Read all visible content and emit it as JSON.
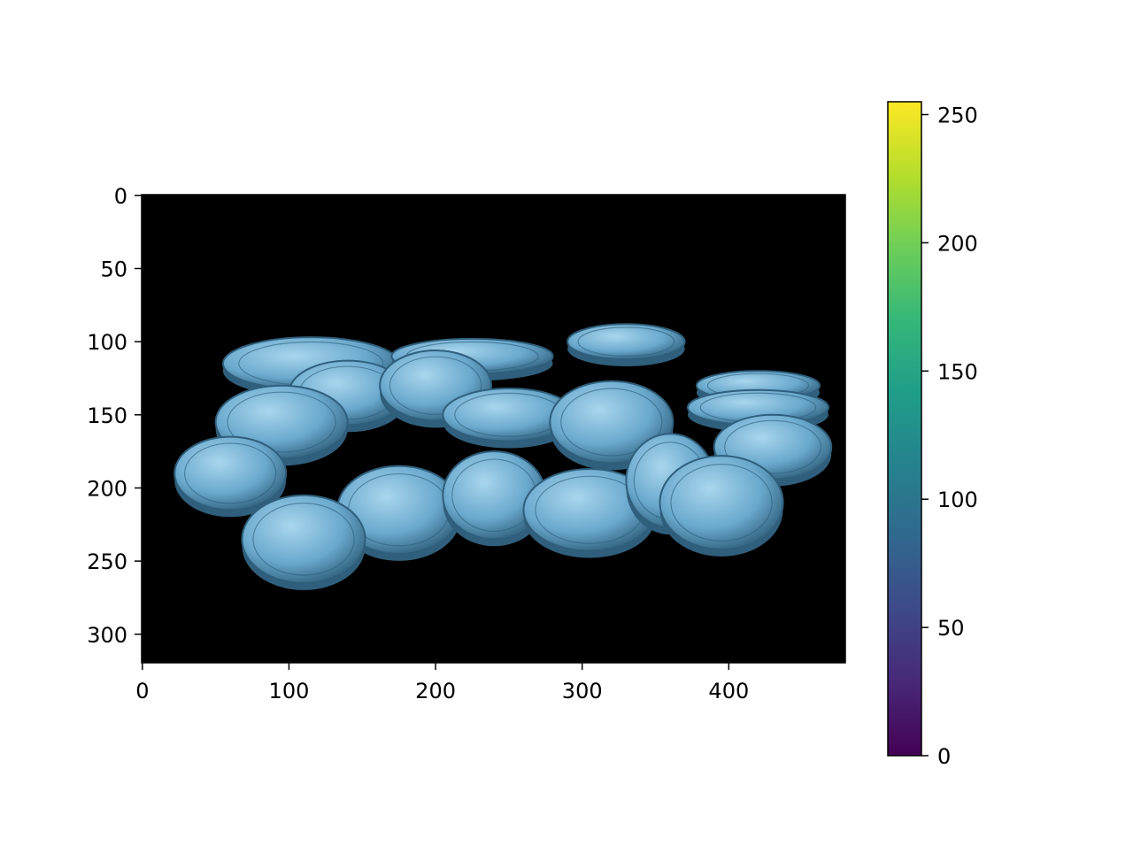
{
  "chart_data": {
    "type": "image",
    "image": {
      "width": 480,
      "height": 320,
      "background": "#000000",
      "coin_fill": "#6aa9cd",
      "coin_edge": "#2f5f7c",
      "coin_highlight": "#a9d6ee",
      "coins": [
        {
          "cx": 115,
          "cy": 115,
          "rx": 60,
          "ry": 18
        },
        {
          "cx": 225,
          "cy": 110,
          "rx": 55,
          "ry": 12
        },
        {
          "cx": 330,
          "cy": 100,
          "rx": 40,
          "ry": 12
        },
        {
          "cx": 420,
          "cy": 130,
          "rx": 42,
          "ry": 10
        },
        {
          "cx": 420,
          "cy": 145,
          "rx": 48,
          "ry": 12
        },
        {
          "cx": 140,
          "cy": 135,
          "rx": 40,
          "ry": 22
        },
        {
          "cx": 200,
          "cy": 130,
          "rx": 38,
          "ry": 24
        },
        {
          "cx": 250,
          "cy": 150,
          "rx": 45,
          "ry": 18
        },
        {
          "cx": 95,
          "cy": 155,
          "rx": 45,
          "ry": 25
        },
        {
          "cx": 320,
          "cy": 155,
          "rx": 42,
          "ry": 28
        },
        {
          "cx": 430,
          "cy": 172,
          "rx": 40,
          "ry": 22
        },
        {
          "cx": 60,
          "cy": 190,
          "rx": 38,
          "ry": 25
        },
        {
          "cx": 175,
          "cy": 215,
          "rx": 42,
          "ry": 30
        },
        {
          "cx": 240,
          "cy": 205,
          "rx": 35,
          "ry": 30
        },
        {
          "cx": 305,
          "cy": 215,
          "rx": 45,
          "ry": 28
        },
        {
          "cx": 360,
          "cy": 195,
          "rx": 30,
          "ry": 32
        },
        {
          "cx": 395,
          "cy": 210,
          "rx": 42,
          "ry": 32
        },
        {
          "cx": 110,
          "cy": 235,
          "rx": 42,
          "ry": 30
        }
      ]
    },
    "x_ticks": [
      0,
      100,
      200,
      300,
      400
    ],
    "y_ticks": [
      0,
      50,
      100,
      150,
      200,
      250,
      300
    ],
    "xlim": [
      -0.5,
      479.5
    ],
    "ylim": [
      319.5,
      -0.5
    ],
    "colorbar": {
      "colormap": "viridis",
      "range": [
        0,
        255
      ],
      "ticks": [
        0,
        50,
        100,
        150,
        200,
        250
      ],
      "stops": [
        "#440154",
        "#482878",
        "#3e4989",
        "#31688e",
        "#26828e",
        "#1f9e89",
        "#35b779",
        "#6ece58",
        "#b5de2b",
        "#fde725"
      ]
    }
  }
}
